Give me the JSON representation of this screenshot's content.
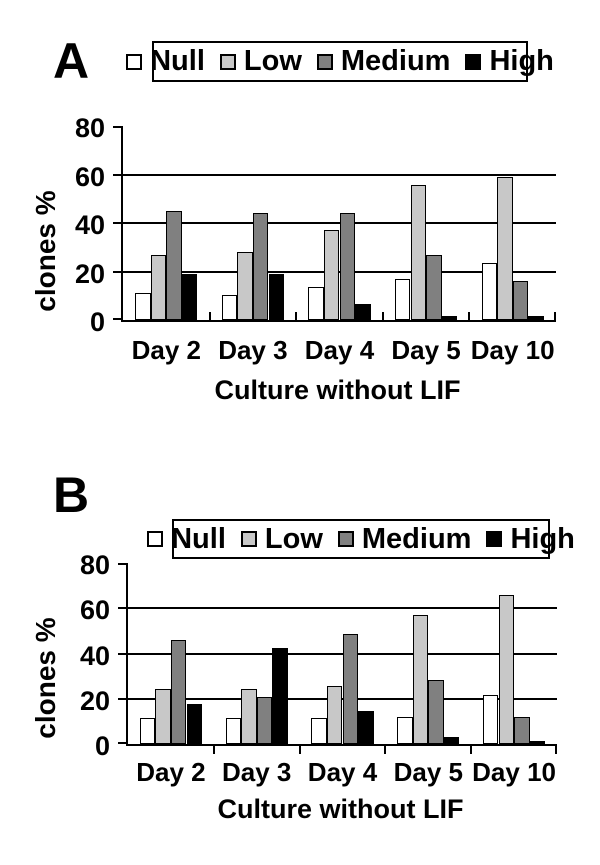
{
  "figure": {
    "background": "#ffffff",
    "text_color": "#000000",
    "axis_color": "#000000"
  },
  "chart_data": [
    {
      "type": "bar",
      "panel": "A",
      "xlabel": "Culture without LIF",
      "ylabel": "clones %",
      "ylim": [
        0,
        80
      ],
      "yticks": [
        0,
        20,
        40,
        60,
        80
      ],
      "gridlines": [
        20,
        40,
        60
      ],
      "grid": "horizontal",
      "legend_position": "top",
      "categories": [
        "Day 2",
        "Day 3",
        "Day 4",
        "Day 5",
        "Day 10"
      ],
      "series": [
        {
          "name": "Null",
          "color": "#ffffff",
          "values": [
            11,
            10.5,
            13.5,
            17,
            23.5
          ]
        },
        {
          "name": "Low",
          "color": "#c8c8c8",
          "values": [
            27,
            28,
            37,
            55.5,
            59
          ]
        },
        {
          "name": "Medium",
          "color": "#808080",
          "values": [
            45,
            44,
            44,
            27,
            16
          ]
        },
        {
          "name": "High",
          "color": "#000000",
          "values": [
            19,
            19,
            6.5,
            1.5,
            1.5
          ]
        }
      ]
    },
    {
      "type": "bar",
      "panel": "B",
      "xlabel": "Culture without LIF",
      "ylabel": "clones %",
      "ylim": [
        0,
        80
      ],
      "yticks": [
        0,
        20,
        40,
        60,
        80
      ],
      "gridlines": [
        20,
        40,
        60
      ],
      "grid": "horizontal",
      "legend_position": "top",
      "categories": [
        "Day 2",
        "Day 3",
        "Day 4",
        "Day 5",
        "Day 10"
      ],
      "series": [
        {
          "name": "Null",
          "color": "#ffffff",
          "values": [
            11.5,
            11.5,
            11.5,
            12,
            21.5
          ]
        },
        {
          "name": "Low",
          "color": "#c8c8c8",
          "values": [
            24.5,
            24.5,
            25.5,
            57,
            66
          ]
        },
        {
          "name": "Medium",
          "color": "#808080",
          "values": [
            46,
            21,
            48.5,
            28.5,
            12
          ]
        },
        {
          "name": "High",
          "color": "#000000",
          "values": [
            17.5,
            42.5,
            14.5,
            3,
            1.5
          ]
        }
      ]
    }
  ]
}
